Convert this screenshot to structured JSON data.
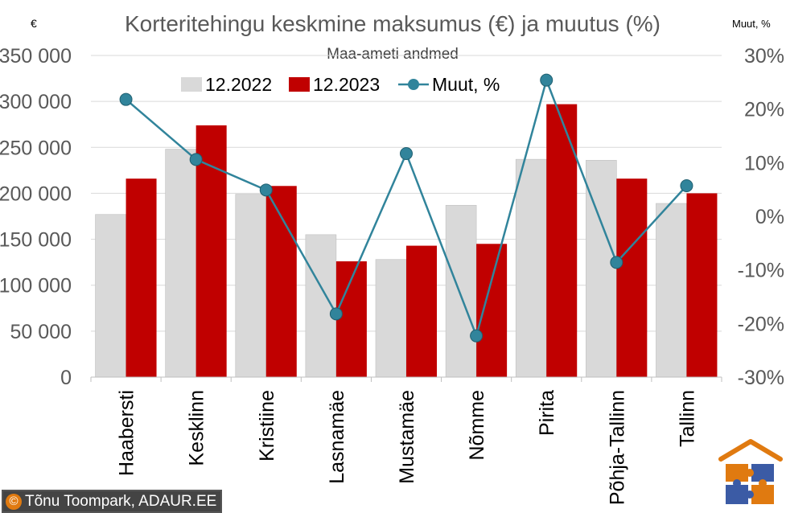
{
  "chart_data": {
    "type": "bar",
    "title": "Korteritehingu keskmine maksumus (€) ja muutus (%)",
    "subtitle": "Maa-ameti andmed",
    "left_unit": "€",
    "right_unit": "Muut, %",
    "categories": [
      "Haabersti",
      "Kesklinn",
      "Kristiine",
      "Lasnamäe",
      "Mustamäe",
      "Nõmme",
      "Pirita",
      "Põhja-Tallinn",
      "Tallinn"
    ],
    "series": [
      {
        "name": "12.2022",
        "kind": "bar",
        "axis": "left",
        "color": "#d9d9d9",
        "values": [
          177000,
          248000,
          199000,
          155000,
          128000,
          187000,
          237000,
          236000,
          189000
        ]
      },
      {
        "name": "12.2023",
        "kind": "bar",
        "axis": "left",
        "color": "#c00000",
        "values": [
          216000,
          274000,
          208000,
          126000,
          143000,
          145000,
          297000,
          216000,
          200000
        ]
      },
      {
        "name": "Muut, %",
        "kind": "line",
        "axis": "right",
        "color": "#31849b",
        "values": [
          21.8,
          10.6,
          4.9,
          -18.2,
          11.7,
          -22.3,
          25.4,
          -8.6,
          5.7
        ]
      }
    ],
    "ylim": [
      0,
      350000
    ],
    "yticks": [
      0,
      50000,
      100000,
      150000,
      200000,
      250000,
      300000,
      350000
    ],
    "ytick_labels": [
      "0",
      "50 000",
      "100 000",
      "150 000",
      "200 000",
      "250 000",
      "300 000",
      "350 000"
    ],
    "y2lim": [
      -30,
      30
    ],
    "y2ticks": [
      -30,
      -20,
      -10,
      0,
      10,
      20,
      30
    ],
    "y2tick_labels": [
      "-30%",
      "-20%",
      "-10%",
      "0%",
      "10%",
      "20%",
      "30%"
    ],
    "grid": true,
    "legend_position": "top"
  },
  "footer": {
    "copyright_symbol": "©",
    "copyright_text": "Tõnu Toompark, ADAUR.EE"
  },
  "colors": {
    "logo_roof": "#e07a10",
    "logo_puzzle_blue": "#3b5ba5",
    "logo_puzzle_orange": "#e07a10"
  }
}
